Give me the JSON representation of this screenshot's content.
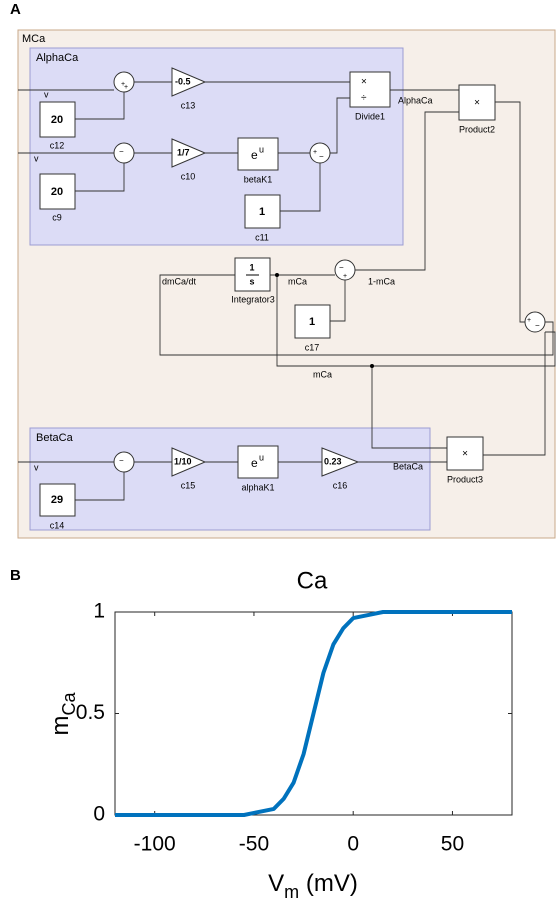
{
  "diagram": {
    "label": "A",
    "subsystem": "MCa",
    "alpha_title": "AlphaCa",
    "beta_title": "BetaCa",
    "signs": {
      "plus": "+",
      "minus": "−",
      "times": "×",
      "divide": "÷"
    },
    "input": "v",
    "blocks": {
      "c12": {
        "value": "20",
        "name": "c12"
      },
      "c13": {
        "value": "-0.5",
        "name": "c13"
      },
      "divide": {
        "name": "Divide1"
      },
      "product2": {
        "name": "Product2"
      },
      "c10": {
        "value": "1/7",
        "name": "c10"
      },
      "betaK1": {
        "base": "e",
        "power": "u",
        "name": "betaK1"
      },
      "c9": {
        "value": "20",
        "name": "c9"
      },
      "c11": {
        "value": "1",
        "name": "c11"
      },
      "integrator": {
        "num": "1",
        "den": "s",
        "name": "Integrator3"
      },
      "c17": {
        "value": "1",
        "name": "c17"
      },
      "c15": {
        "value": "1/10",
        "name": "c15"
      },
      "alphaK1": {
        "base": "e",
        "power": "u",
        "name": "alphaK1"
      },
      "c16": {
        "value": "0.23",
        "name": "c16"
      },
      "product3": {
        "name": "Product3"
      },
      "c14": {
        "value": "29",
        "name": "c14"
      }
    },
    "signals": {
      "alpha": "AlphaCa",
      "beta": "BetaCa",
      "deriv": "dmCa/dt",
      "m": "mCa",
      "one_minus": "1-mCa"
    }
  },
  "chart_data": {
    "type": "line",
    "label": "B",
    "title": "Ca",
    "xlabel": {
      "main": "V",
      "sub": "m",
      "rest": " (mV)"
    },
    "ylabel": {
      "main": "m",
      "sub": "Ca"
    },
    "x": [
      -120,
      -100,
      -80,
      -60,
      -55,
      -50,
      -45,
      -40,
      -35,
      -30,
      -25,
      -20,
      -15,
      -10,
      -5,
      0,
      5,
      10,
      15,
      20,
      40,
      60,
      80
    ],
    "series": [
      {
        "color": "#0072bd",
        "values": [
          0,
          0,
          0,
          0,
          0,
          0.01,
          0.02,
          0.03,
          0.08,
          0.16,
          0.3,
          0.5,
          0.7,
          0.84,
          0.92,
          0.97,
          0.98,
          0.99,
          1,
          1,
          1,
          1,
          1
        ]
      }
    ],
    "xlim": [
      -120,
      80
    ],
    "ylim": [
      0,
      1
    ],
    "xticks": [
      -100,
      -50,
      0,
      50
    ],
    "yticks": [
      0,
      0.5,
      1
    ]
  }
}
